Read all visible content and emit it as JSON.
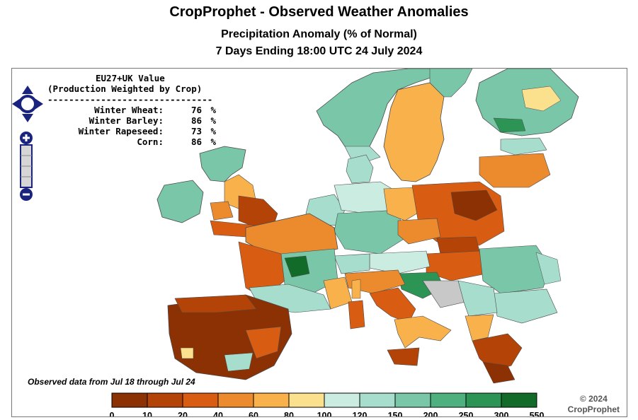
{
  "header": {
    "title": "CropProphet - Observed Weather Anomalies",
    "subtitle": "Precipitation Anomaly (% of Normal)",
    "period": "7 Days Ending 18:00 UTC 24 July 2024"
  },
  "value_box": {
    "heading_1": "EU27+UK Value",
    "heading_2": "(Production Weighted by Crop)",
    "separator": "-------------------------------",
    "crops": [
      {
        "name": "Winter Wheat:",
        "value": "76",
        "unit": "%"
      },
      {
        "name": "Winter Barley:",
        "value": "86",
        "unit": "%"
      },
      {
        "name": "Winter Rapeseed:",
        "value": "73",
        "unit": "%"
      },
      {
        "name": "Corn:",
        "value": "86",
        "unit": "%"
      }
    ]
  },
  "observed_note": "Observed data from Jul 18 through Jul 24",
  "copyright": {
    "line1": "© 2024",
    "line2": "CropProphet"
  },
  "legend": {
    "bins": [
      {
        "label": "0",
        "color": "#8c3103"
      },
      {
        "label": "10",
        "color": "#b44307"
      },
      {
        "label": "20",
        "color": "#d85c12"
      },
      {
        "label": "40",
        "color": "#ec8a2e"
      },
      {
        "label": "60",
        "color": "#f9b24b"
      },
      {
        "label": "80",
        "color": "#fbe08e"
      },
      {
        "label": "100",
        "color": "#cbece0"
      },
      {
        "label": "120",
        "color": "#a7ddcc"
      },
      {
        "label": "150",
        "color": "#79c7a8"
      },
      {
        "label": "200",
        "color": "#4fb07f"
      },
      {
        "label": "250",
        "color": "#2c9454"
      },
      {
        "label": "300",
        "color": "#126b28"
      }
    ],
    "end_label": "550"
  },
  "colors": {
    "water": "#ffffff",
    "no_data": "#c8c8c8",
    "border": "#4a4a4a",
    "nav_control": "#1a237e"
  },
  "map_controls": {
    "pan": "pan-arrows-icon",
    "zoom_in": "zoom-in-icon",
    "zoom_out": "zoom-out-icon"
  }
}
